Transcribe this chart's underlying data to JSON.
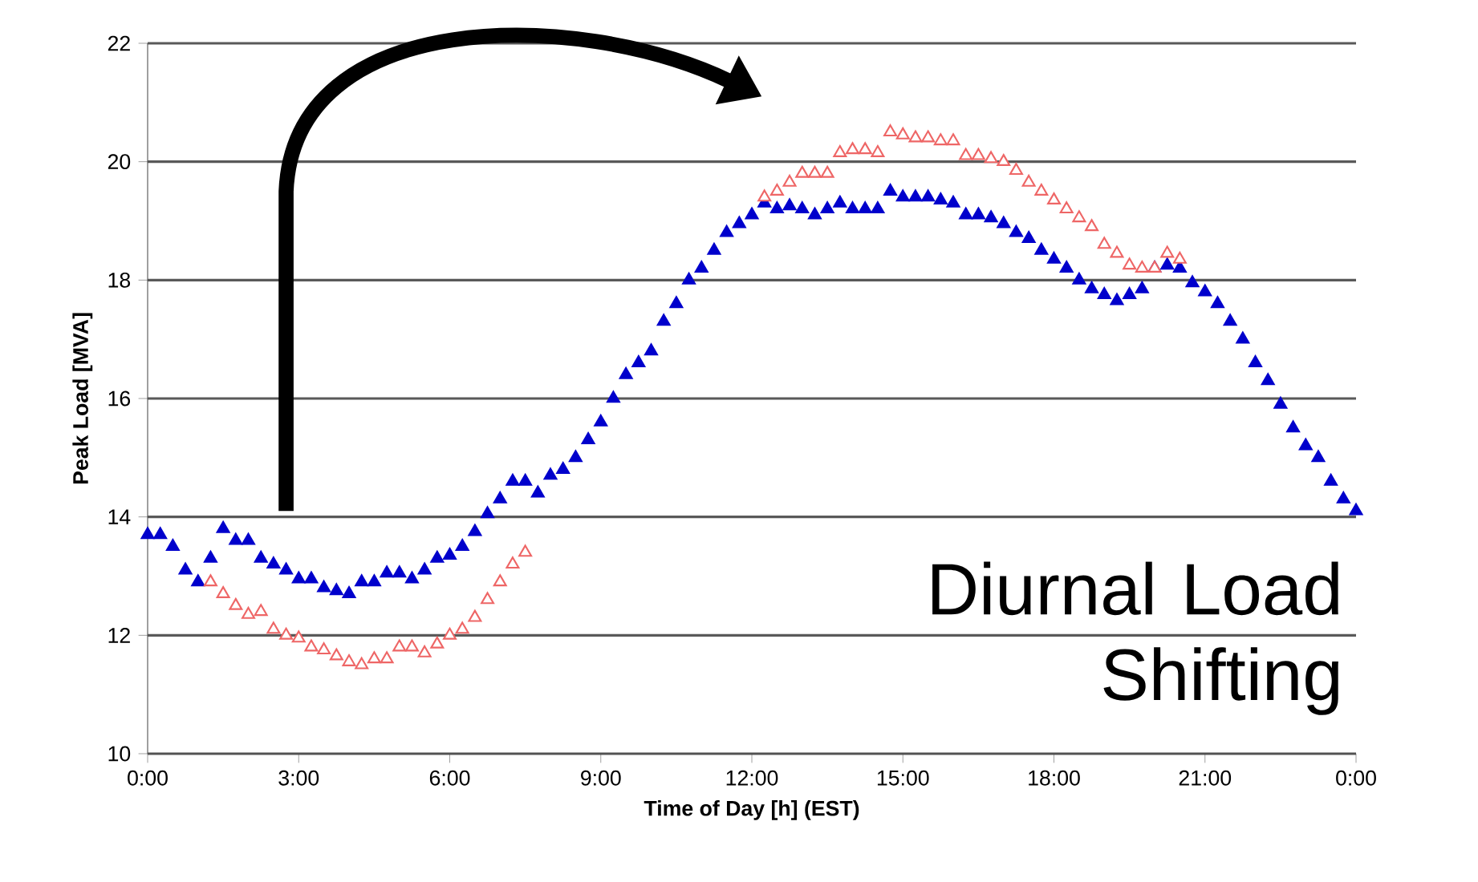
{
  "chart_data": {
    "type": "scatter",
    "xlabel": "Time of Day [h] (EST)",
    "ylabel": "Peak Load [MVA]",
    "xlim": [
      0,
      24
    ],
    "ylim": [
      10,
      22
    ],
    "xticks": [
      {
        "value": 0,
        "label": "0:00"
      },
      {
        "value": 3,
        "label": "3:00"
      },
      {
        "value": 6,
        "label": "6:00"
      },
      {
        "value": 9,
        "label": "9:00"
      },
      {
        "value": 12,
        "label": "12:00"
      },
      {
        "value": 15,
        "label": "15:00"
      },
      {
        "value": 18,
        "label": "18:00"
      },
      {
        "value": 21,
        "label": "21:00"
      },
      {
        "value": 24,
        "label": "0:00"
      }
    ],
    "yticks": [
      10,
      12,
      14,
      16,
      18,
      20,
      22
    ],
    "grid": "y",
    "marker": "triangle",
    "annotations": [
      "Diurnal Load Shifting"
    ],
    "series": [
      {
        "color": "#0000cc",
        "x": [
          0,
          0.25,
          0.5,
          0.75,
          1,
          1.25,
          1.5,
          1.75,
          2,
          2.25,
          2.5,
          2.75,
          3,
          3.25,
          3.5,
          3.75,
          4,
          4.25,
          4.5,
          4.75,
          5,
          5.25,
          5.5,
          5.75,
          6,
          6.25,
          6.5,
          6.75,
          7,
          7.25,
          7.5,
          7.75,
          8,
          8.25,
          8.5,
          8.75,
          9,
          9.25,
          9.5,
          9.75,
          10,
          10.25,
          10.5,
          10.75,
          11,
          11.25,
          11.5,
          11.75,
          12,
          12.25,
          12.5,
          12.75,
          13,
          13.25,
          13.5,
          13.75,
          14,
          14.25,
          14.5,
          14.75,
          15,
          15.25,
          15.5,
          15.75,
          16,
          16.25,
          16.5,
          16.75,
          17,
          17.25,
          17.5,
          17.75,
          18,
          18.25,
          18.5,
          18.75,
          19,
          19.25,
          19.5,
          19.75,
          20,
          20.25,
          20.5,
          20.75,
          21,
          21.25,
          21.5,
          21.75,
          22,
          22.25,
          22.5,
          22.75,
          23,
          23.25,
          23.5,
          23.75,
          24
        ],
        "values": [
          13.7,
          13.7,
          13.5,
          13.1,
          12.9,
          13.3,
          13.8,
          13.6,
          13.6,
          13.3,
          13.2,
          13.1,
          12.95,
          12.95,
          12.8,
          12.75,
          12.7,
          12.9,
          12.9,
          13.05,
          13.05,
          12.95,
          13.1,
          13.3,
          13.35,
          13.5,
          13.75,
          14.05,
          14.3,
          14.6,
          14.6,
          14.4,
          14.7,
          14.8,
          15.0,
          15.3,
          15.6,
          16.0,
          16.4,
          16.6,
          16.8,
          17.3,
          17.6,
          18.0,
          18.2,
          18.5,
          18.8,
          18.95,
          19.1,
          19.3,
          19.2,
          19.25,
          19.2,
          19.1,
          19.2,
          19.3,
          19.2,
          19.2,
          19.2,
          19.5,
          19.4,
          19.4,
          19.4,
          19.35,
          19.3,
          19.1,
          19.1,
          19.05,
          18.95,
          18.8,
          18.7,
          18.5,
          18.35,
          18.2,
          18.0,
          17.85,
          17.75,
          17.65,
          17.75,
          17.85,
          18.2,
          18.25,
          18.2,
          17.95,
          17.8,
          17.6,
          17.3,
          17.0,
          16.6,
          16.3,
          15.9,
          15.5,
          15.2,
          15.0,
          14.6,
          14.3,
          14.1
        ]
      },
      {
        "color": "#ee6666",
        "x": [
          1.25,
          1.5,
          1.75,
          2,
          2.25,
          2.5,
          2.75,
          3,
          3.25,
          3.5,
          3.75,
          4,
          4.25,
          4.5,
          4.75,
          5,
          5.25,
          5.5,
          5.75,
          6,
          6.25,
          6.5,
          6.75,
          7,
          7.25,
          7.5
        ],
        "values": [
          12.9,
          12.7,
          12.5,
          12.35,
          12.4,
          12.1,
          12.0,
          11.95,
          11.8,
          11.75,
          11.65,
          11.55,
          11.5,
          11.6,
          11.6,
          11.8,
          11.8,
          11.7,
          11.85,
          12.0,
          12.1,
          12.3,
          12.6,
          12.9,
          13.2,
          13.4
        ]
      },
      {
        "color": "#ee6666",
        "x": [
          12.25,
          12.5,
          12.75,
          13,
          13.25,
          13.5,
          13.75,
          14,
          14.25,
          14.5,
          14.75,
          15,
          15.25,
          15.5,
          15.75,
          16,
          16.25,
          16.5,
          16.75,
          17,
          17.25,
          17.5,
          17.75,
          18,
          18.25,
          18.5,
          18.75,
          19,
          19.25,
          19.5,
          19.75,
          20,
          20.25,
          20.5
        ],
        "values": [
          19.4,
          19.5,
          19.65,
          19.8,
          19.8,
          19.8,
          20.15,
          20.2,
          20.2,
          20.15,
          20.5,
          20.45,
          20.4,
          20.4,
          20.35,
          20.35,
          20.1,
          20.1,
          20.05,
          20.0,
          19.85,
          19.65,
          19.5,
          19.35,
          19.2,
          19.05,
          18.9,
          18.6,
          18.45,
          18.25,
          18.2,
          18.2,
          18.45,
          18.35
        ]
      }
    ]
  }
}
